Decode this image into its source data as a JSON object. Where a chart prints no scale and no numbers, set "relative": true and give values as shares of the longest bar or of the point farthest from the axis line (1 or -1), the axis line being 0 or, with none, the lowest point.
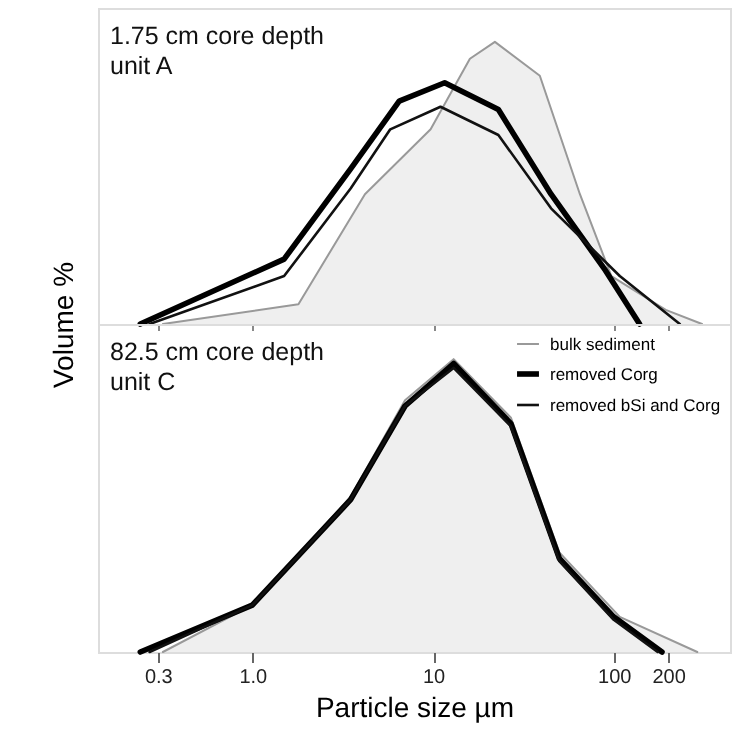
{
  "chart_data": [
    {
      "type": "line",
      "relative": true,
      "ylabel": "Volume %",
      "annotations": [
        "1.75 cm core depth",
        "unit A"
      ],
      "xlim": [
        0.14,
        440
      ],
      "log": "x",
      "tick_labels": false,
      "xticks": [
        0.3,
        1,
        10,
        100,
        200
      ],
      "series": [
        {
          "type": "area",
          "color": "#999999",
          "x": [
            0.32,
            1.8,
            4.2,
            9.7,
            16,
            22,
            39,
            65,
            97,
            194,
            308
          ],
          "values": [
            0,
            0.07,
            0.46,
            0.69,
            0.94,
            1.0,
            0.88,
            0.46,
            0.17,
            0.05,
            0
          ]
        },
        {
          "color": "#000000",
          "x": [
            0.24,
            1.5,
            3.5,
            6.5,
            11.6,
            23,
            45,
            90,
            139
          ],
          "values": [
            0,
            0.23,
            0.55,
            0.79,
            0.855,
            0.76,
            0.46,
            0.19,
            0
          ]
        },
        {
          "color": "#111111",
          "x": [
            0.27,
            1.5,
            3.5,
            5.8,
            11,
            23,
            45,
            108,
            232
          ],
          "values": [
            0,
            0.17,
            0.48,
            0.69,
            0.77,
            0.67,
            0.41,
            0.17,
            0
          ]
        }
      ]
    },
    {
      "type": "line",
      "relative": true,
      "xlabel": "Particle size µm",
      "annotations": [
        "82.5 cm core depth",
        "unit C"
      ],
      "xlim": [
        0.14,
        440
      ],
      "log": "x",
      "tick_labels": "x",
      "legend": "top right",
      "xticks": [
        0.3,
        {
          "value": 1,
          "label": "1.0"
        },
        10,
        100,
        200
      ],
      "series": [
        {
          "name": "bulk sediment",
          "type": "area",
          "color": "#999999",
          "x": [
            0.32,
            1.0,
            3.5,
            7,
            13,
            27,
            50,
            108,
            290
          ],
          "values": [
            0,
            0.16,
            0.53,
            0.86,
            1.0,
            0.8,
            0.34,
            0.12,
            0
          ]
        },
        {
          "name": "removed Corg",
          "color": "#000000",
          "x": [
            0.24,
            1.0,
            3.5,
            7,
            13,
            27,
            50,
            100,
            185
          ],
          "values": [
            0,
            0.16,
            0.52,
            0.84,
            0.985,
            0.78,
            0.32,
            0.12,
            0
          ]
        },
        {
          "name": "removed bSi and Corg",
          "color": "#111111",
          "x": [
            0.27,
            1.0,
            3.5,
            7,
            13,
            27,
            50,
            100,
            175
          ],
          "values": [
            0,
            0.16,
            0.52,
            0.84,
            0.97,
            0.77,
            0.31,
            0.11,
            0
          ]
        }
      ]
    }
  ]
}
